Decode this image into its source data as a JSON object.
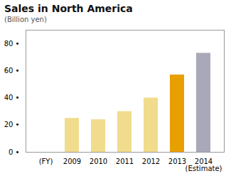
{
  "chart_data": {
    "type": "bar",
    "title": "Sales in North America",
    "subtitle": "(Billion yen)",
    "categories": [
      "(FY)",
      "2009",
      "2010",
      "2011",
      "2012",
      "2013",
      "2014\n(Estimate)"
    ],
    "values": [
      null,
      25,
      24,
      30,
      40,
      57,
      73
    ],
    "colors": [
      null,
      "#F0DC8C",
      "#F0DC8C",
      "#F0DC8C",
      "#F0DC8C",
      "#E8A000",
      "#A8A8B8"
    ],
    "ylim": [
      0,
      90
    ],
    "yticks": [
      {
        "value": 0,
        "label": "0 •"
      },
      {
        "value": 20,
        "label": "20 •"
      },
      {
        "value": 40,
        "label": "40 •"
      },
      {
        "value": 60,
        "label": "60 •"
      },
      {
        "value": 80,
        "label": "80 •"
      }
    ],
    "grid": false
  }
}
